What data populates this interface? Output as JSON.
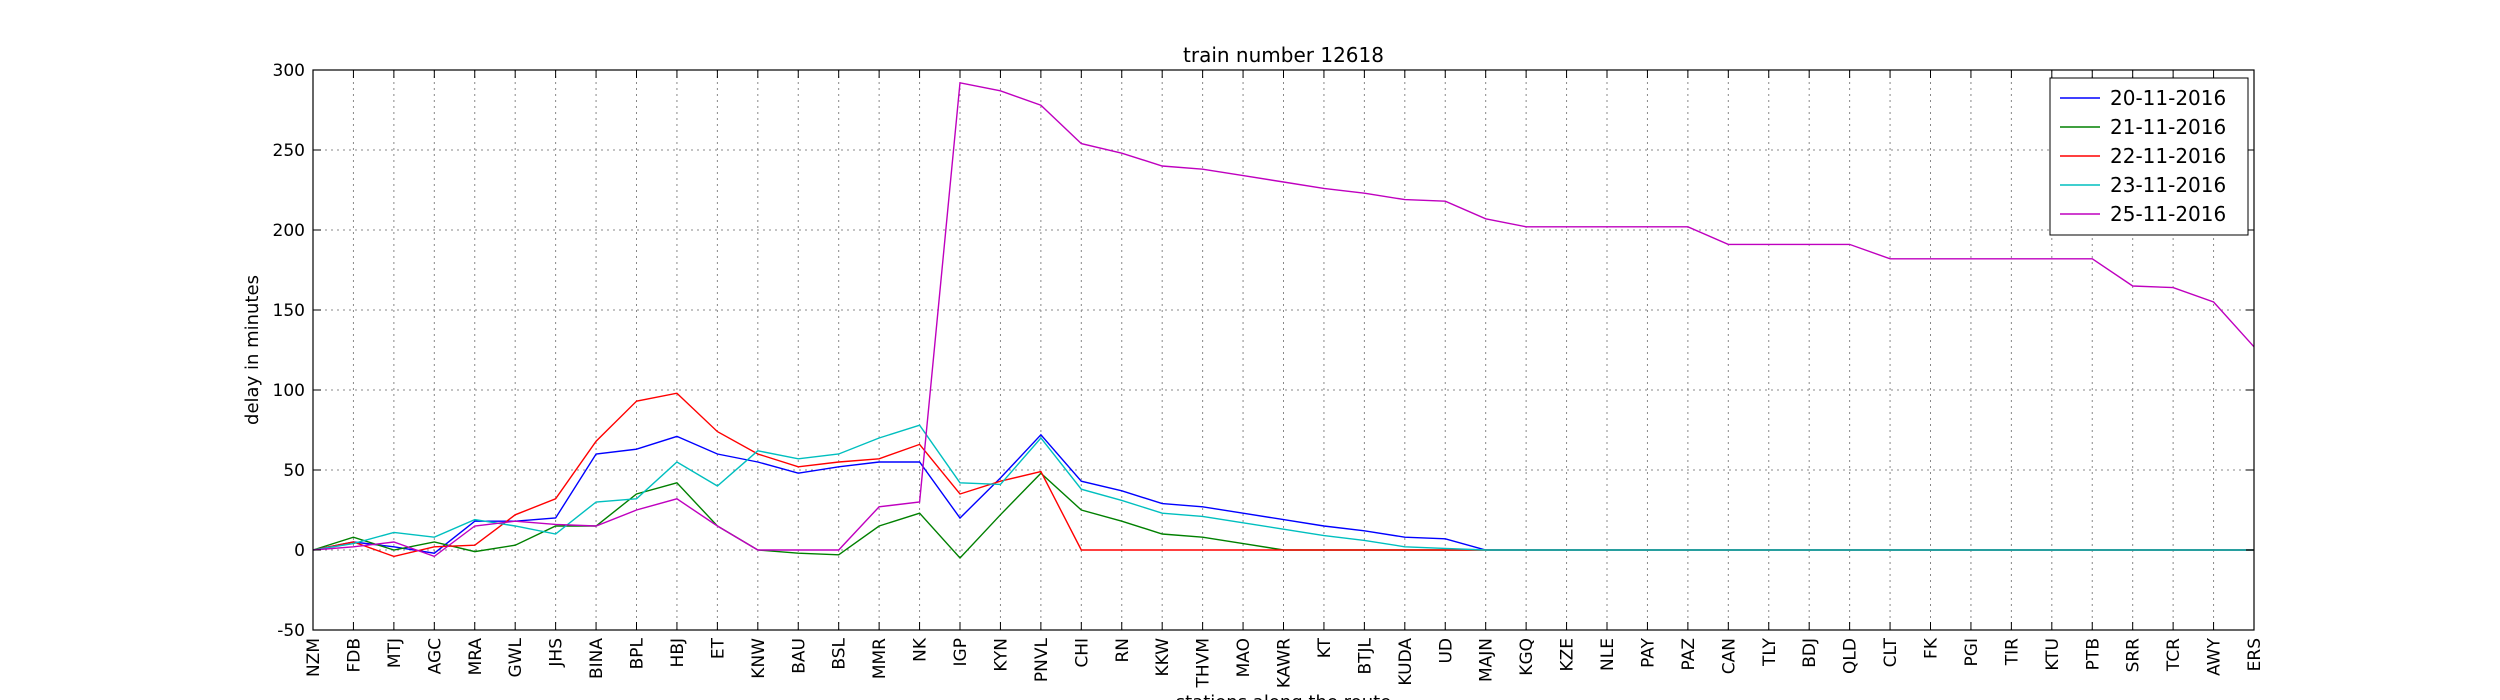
{
  "chart_data": {
    "type": "line",
    "title": "train number 12618",
    "xlabel": "stations along the route",
    "ylabel": "delay in minutes",
    "ylim": [
      -50,
      300
    ],
    "yticks": [
      -50,
      0,
      50,
      100,
      150,
      200,
      250,
      300
    ],
    "grid": true,
    "legend_position": "top-right",
    "categories": [
      "NZM",
      "FDB",
      "MTJ",
      "AGC",
      "MRA",
      "GWL",
      "JHS",
      "BINA",
      "BPL",
      "HBJ",
      "ET",
      "KNW",
      "BAU",
      "BSL",
      "MMR",
      "NK",
      "IGP",
      "KYN",
      "PNVL",
      "CHI",
      "RN",
      "KKW",
      "THVM",
      "MAO",
      "KAWR",
      "KT",
      "BTJL",
      "KUDA",
      "UD",
      "MAJN",
      "KGQ",
      "KZE",
      "NLE",
      "PAY",
      "PAZ",
      "CAN",
      "TLY",
      "BDJ",
      "QLD",
      "CLT",
      "FK",
      "PGI",
      "TIR",
      "KTU",
      "PTB",
      "SRR",
      "TCR",
      "AWY",
      "ERS"
    ],
    "series": [
      {
        "name": "20-11-2016",
        "color": "#0000ff",
        "values": [
          0,
          5,
          2,
          -2,
          18,
          18,
          20,
          60,
          63,
          71,
          60,
          55,
          48,
          52,
          55,
          55,
          20,
          45,
          72,
          43,
          37,
          29,
          27,
          23,
          19,
          15,
          12,
          8,
          7,
          0,
          0,
          0,
          0,
          0,
          0,
          0,
          0,
          0,
          0,
          0,
          0,
          0,
          0,
          0,
          0,
          0,
          0,
          0,
          0
        ]
      },
      {
        "name": "21-11-2016",
        "color": "#008000",
        "values": [
          0,
          8,
          0,
          5,
          -1,
          3,
          15,
          15,
          35,
          42,
          15,
          0,
          -2,
          -3,
          15,
          23,
          -5,
          22,
          48,
          25,
          18,
          10,
          8,
          4,
          0,
          0,
          0,
          0,
          0,
          0,
          0,
          0,
          0,
          0,
          0,
          0,
          0,
          0,
          0,
          0,
          0,
          0,
          0,
          0,
          0,
          0,
          0,
          0,
          0
        ]
      },
      {
        "name": "22-11-2016",
        "color": "#ff0000",
        "values": [
          0,
          5,
          -4,
          2,
          3,
          22,
          32,
          68,
          93,
          98,
          74,
          60,
          52,
          55,
          57,
          66,
          35,
          43,
          49,
          0,
          0,
          0,
          0,
          0,
          0,
          0,
          0,
          0,
          0,
          0,
          0,
          0,
          0,
          0,
          0,
          0,
          0,
          0,
          0,
          0,
          0,
          0,
          0,
          0,
          0,
          0,
          0,
          0,
          0
        ]
      },
      {
        "name": "23-11-2016",
        "color": "#00bfbf",
        "values": [
          0,
          4,
          11,
          8,
          19,
          15,
          10,
          30,
          32,
          55,
          40,
          62,
          57,
          60,
          70,
          78,
          42,
          41,
          70,
          38,
          31,
          23,
          21,
          17,
          13,
          9,
          6,
          2,
          1,
          0,
          0,
          0,
          0,
          0,
          0,
          0,
          0,
          0,
          0,
          0,
          0,
          0,
          0,
          0,
          0,
          0,
          0,
          0,
          0
        ]
      },
      {
        "name": "25-11-2016",
        "color": "#bf00bf",
        "values": [
          0,
          2,
          5,
          -4,
          15,
          18,
          16,
          15,
          25,
          32,
          15,
          0,
          0,
          0,
          27,
          30,
          292,
          287,
          278,
          254,
          248,
          240,
          238,
          234,
          230,
          226,
          223,
          219,
          218,
          207,
          202,
          202,
          202,
          202,
          202,
          191,
          191,
          191,
          191,
          182,
          182,
          182,
          182,
          182,
          182,
          165,
          164,
          155,
          127
        ]
      }
    ]
  }
}
